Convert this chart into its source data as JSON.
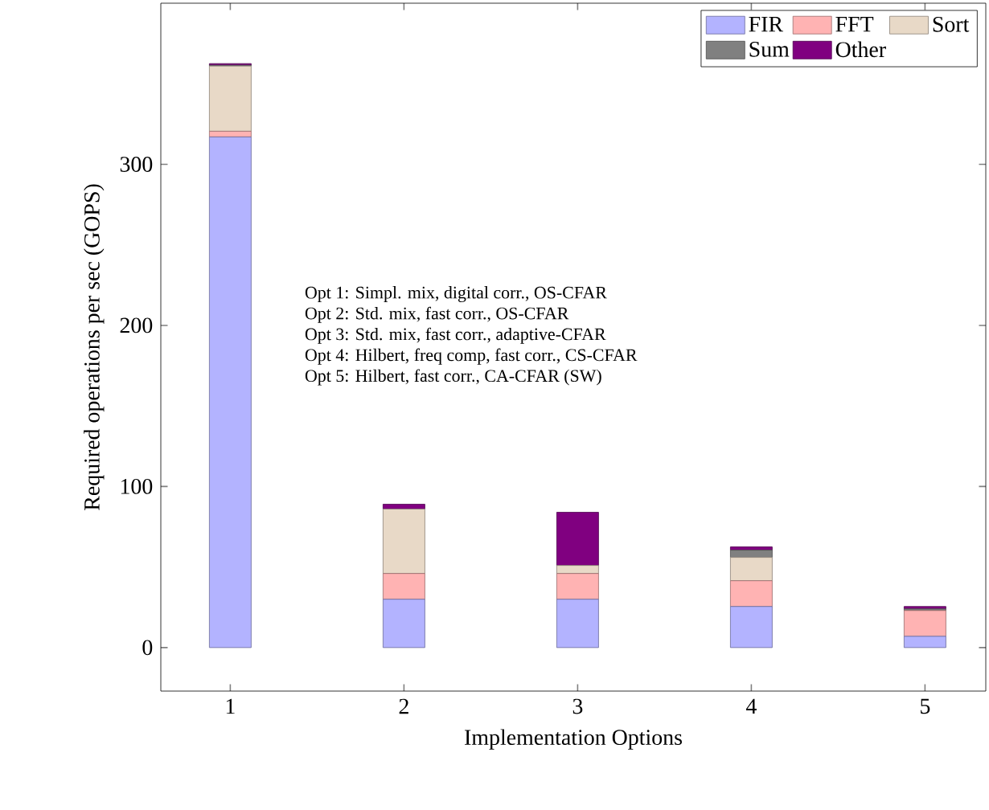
{
  "chart_data": {
    "type": "bar",
    "stacked": true,
    "xlabel": "Implementation Options",
    "ylabel": "Required operations per sec (GOPS)",
    "categories": [
      "1",
      "2",
      "3",
      "4",
      "5"
    ],
    "series": [
      {
        "name": "FIR",
        "color": "#b3b3ff",
        "values": [
          317,
          30,
          30,
          25.5,
          7
        ]
      },
      {
        "name": "FFT",
        "color": "#ffb3b3",
        "values": [
          3.5,
          16,
          16,
          16,
          16
        ]
      },
      {
        "name": "Sort",
        "color": "#e8d9c7",
        "values": [
          40.5,
          40,
          5,
          14.5,
          0
        ]
      },
      {
        "name": "Sum",
        "color": "#808080",
        "values": [
          0.5,
          0,
          0,
          4.5,
          1
        ]
      },
      {
        "name": "Other",
        "color": "#800080",
        "values": [
          1,
          3,
          33,
          2,
          1.5
        ]
      }
    ],
    "ylim": [
      -27,
      400
    ],
    "yticks": [
      0,
      100,
      200,
      300
    ],
    "grid": false,
    "legend": "top right",
    "annotations": [
      "Opt 1: Simpl. mix, digital corr., OS-CFAR",
      "Opt 2: Std. mix, fast corr., OS-CFAR",
      "Opt 3: Std. mix, fast corr., adaptive-CFAR",
      "Opt 4: Hilbert, freq comp, fast corr., CS-CFAR",
      "Opt 5: Hilbert, fast corr., CA-CFAR (SW)"
    ]
  }
}
